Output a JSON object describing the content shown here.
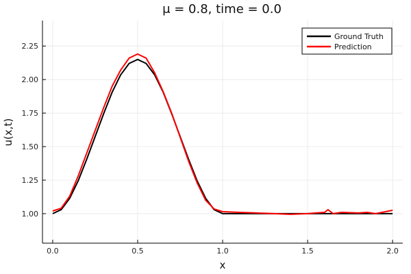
{
  "chart_data": {
    "type": "line",
    "title": "μ = 0.8, time = 0.0",
    "xlabel": "x",
    "ylabel": "u(x,t)",
    "xlim": [
      -0.06,
      2.06
    ],
    "ylim": [
      0.78,
      2.44
    ],
    "xticks": [
      0.0,
      0.5,
      1.0,
      1.5,
      2.0
    ],
    "xtick_labels": [
      "0.0",
      "0.5",
      "1.0",
      "1.5",
      "2.0"
    ],
    "yticks": [
      1.0,
      1.25,
      1.5,
      1.75,
      2.0,
      2.25
    ],
    "ytick_labels": [
      "1.00",
      "1.25",
      "1.50",
      "1.75",
      "2.00",
      "2.25"
    ],
    "grid": true,
    "legend_position": "top-right",
    "series": [
      {
        "name": "Ground Truth",
        "color": "#000000",
        "x": [
          0.0,
          0.05,
          0.1,
          0.15,
          0.2,
          0.25,
          0.3,
          0.35,
          0.4,
          0.45,
          0.5,
          0.55,
          0.6,
          0.65,
          0.7,
          0.75,
          0.8,
          0.85,
          0.9,
          0.95,
          1.0,
          1.1,
          1.2,
          1.3,
          1.4,
          1.5,
          1.6,
          1.7,
          1.8,
          1.9,
          2.0
        ],
        "y": [
          1.0,
          1.0296,
          1.1148,
          1.2445,
          1.4045,
          1.575,
          1.7455,
          1.9055,
          2.0352,
          2.1204,
          2.15,
          2.1204,
          2.0352,
          1.9055,
          1.7455,
          1.575,
          1.4045,
          1.2445,
          1.1148,
          1.0296,
          1.0,
          1.0,
          1.0,
          1.0,
          1.0,
          1.0,
          1.0,
          1.0,
          1.0,
          1.0,
          1.0
        ]
      },
      {
        "name": "Prediction",
        "color": "#ff0000",
        "x": [
          0.0,
          0.05,
          0.1,
          0.15,
          0.2,
          0.25,
          0.3,
          0.35,
          0.4,
          0.45,
          0.5,
          0.55,
          0.6,
          0.65,
          0.7,
          0.75,
          0.8,
          0.85,
          0.9,
          0.95,
          1.0,
          1.1,
          1.2,
          1.3,
          1.4,
          1.5,
          1.55,
          1.6,
          1.62,
          1.65,
          1.7,
          1.8,
          1.85,
          1.9,
          2.0
        ],
        "y": [
          1.02,
          1.04,
          1.13,
          1.28,
          1.45,
          1.62,
          1.79,
          1.95,
          2.07,
          2.16,
          2.19,
          2.16,
          2.05,
          1.91,
          1.75,
          1.57,
          1.39,
          1.23,
          1.1,
          1.035,
          1.015,
          1.01,
          1.005,
          1.0,
          0.995,
          1.0,
          1.005,
          1.01,
          1.03,
          1.0,
          1.01,
          1.005,
          1.01,
          1.0,
          1.025
        ]
      }
    ]
  }
}
